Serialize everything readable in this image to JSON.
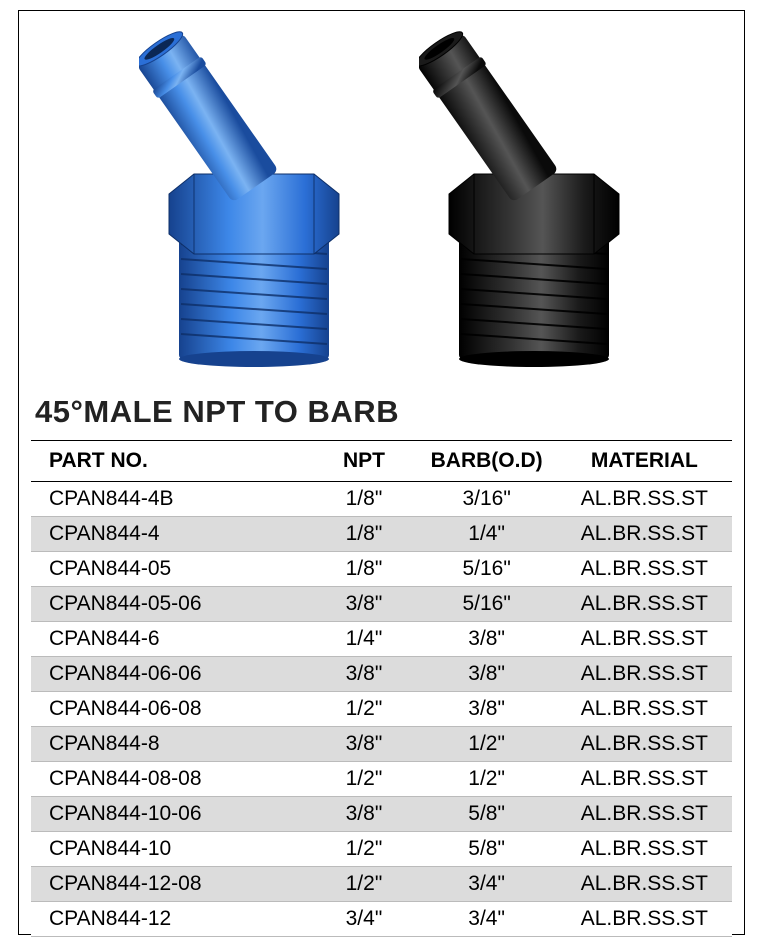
{
  "title": "45°MALE NPT TO BARB",
  "images": {
    "left_color": "#2b6fd6",
    "left_shadow": "#16428e",
    "right_color": "#1a1a1a",
    "right_shadow": "#000000"
  },
  "table": {
    "headers": {
      "part": "PART NO.",
      "npt": "NPT",
      "barb": "BARB(O.D)",
      "material": "MATERIAL"
    },
    "rows": [
      {
        "part": "CPAN844-4B",
        "npt": "1/8\"",
        "barb": "3/16\"",
        "material": "AL.BR.SS.ST"
      },
      {
        "part": "CPAN844-4",
        "npt": "1/8\"",
        "barb": "1/4\"",
        "material": "AL.BR.SS.ST"
      },
      {
        "part": "CPAN844-05",
        "npt": "1/8\"",
        "barb": "5/16\"",
        "material": "AL.BR.SS.ST"
      },
      {
        "part": "CPAN844-05-06",
        "npt": "3/8\"",
        "barb": "5/16\"",
        "material": "AL.BR.SS.ST"
      },
      {
        "part": "CPAN844-6",
        "npt": "1/4\"",
        "barb": "3/8\"",
        "material": "AL.BR.SS.ST"
      },
      {
        "part": "CPAN844-06-06",
        "npt": "3/8\"",
        "barb": "3/8\"",
        "material": "AL.BR.SS.ST"
      },
      {
        "part": "CPAN844-06-08",
        "npt": "1/2\"",
        "barb": "3/8\"",
        "material": "AL.BR.SS.ST"
      },
      {
        "part": "CPAN844-8",
        "npt": "3/8\"",
        "barb": "1/2\"",
        "material": "AL.BR.SS.ST"
      },
      {
        "part": "CPAN844-08-08",
        "npt": "1/2\"",
        "barb": "1/2\"",
        "material": "AL.BR.SS.ST"
      },
      {
        "part": "CPAN844-10-06",
        "npt": "3/8\"",
        "barb": "5/8\"",
        "material": "AL.BR.SS.ST"
      },
      {
        "part": "CPAN844-10",
        "npt": "1/2\"",
        "barb": "5/8\"",
        "material": "AL.BR.SS.ST"
      },
      {
        "part": "CPAN844-12-08",
        "npt": "1/2\"",
        "barb": "3/4\"",
        "material": "AL.BR.SS.ST"
      },
      {
        "part": "CPAN844-12",
        "npt": "3/4\"",
        "barb": "3/4\"",
        "material": "AL.BR.SS.ST"
      }
    ]
  },
  "styling": {
    "border_color": "#000000",
    "alt_row_bg": "#dcdcdc",
    "row_bg": "#ffffff",
    "header_fontsize": 21,
    "cell_fontsize": 21,
    "title_fontsize": 31,
    "title_color": "#222222"
  }
}
